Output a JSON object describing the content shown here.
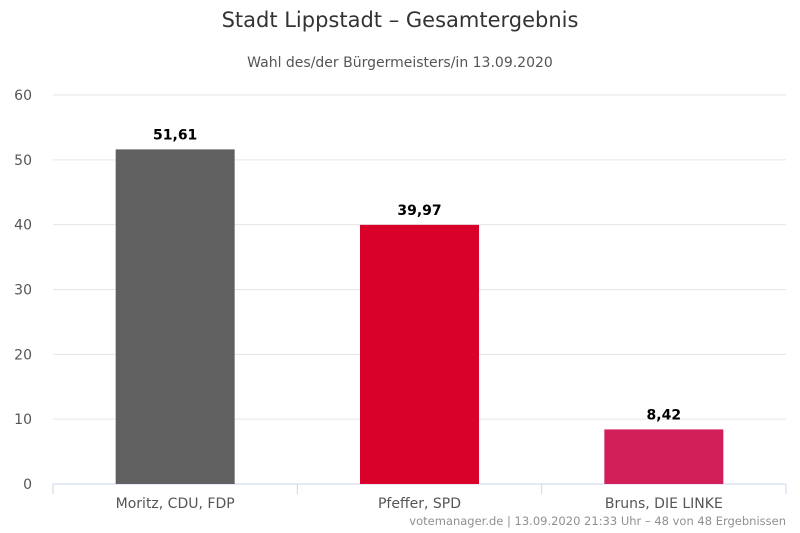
{
  "chart_data": {
    "type": "bar",
    "title": "Stadt Lippstadt – Gesamtergebnis",
    "subtitle": "Wahl des/der Bürgermeisters/in 13.09.2020",
    "categories": [
      "Moritz, CDU, FDP",
      "Pfeffer, SPD",
      "Bruns, DIE LINKE"
    ],
    "values": [
      51.61,
      39.97,
      8.42
    ],
    "data_labels": [
      "51,61",
      "39,97",
      "8,42"
    ],
    "colors": [
      "#606060",
      "#d9002a",
      "#d21f5a"
    ],
    "ylim": [
      0,
      60
    ],
    "yticks": [
      0,
      10,
      20,
      30,
      40,
      50,
      60
    ],
    "grid": true,
    "legend": "none"
  },
  "credits": "votemanager.de | 13.09.2020 21:33 Uhr – 48 von 48 Ergebnissen"
}
